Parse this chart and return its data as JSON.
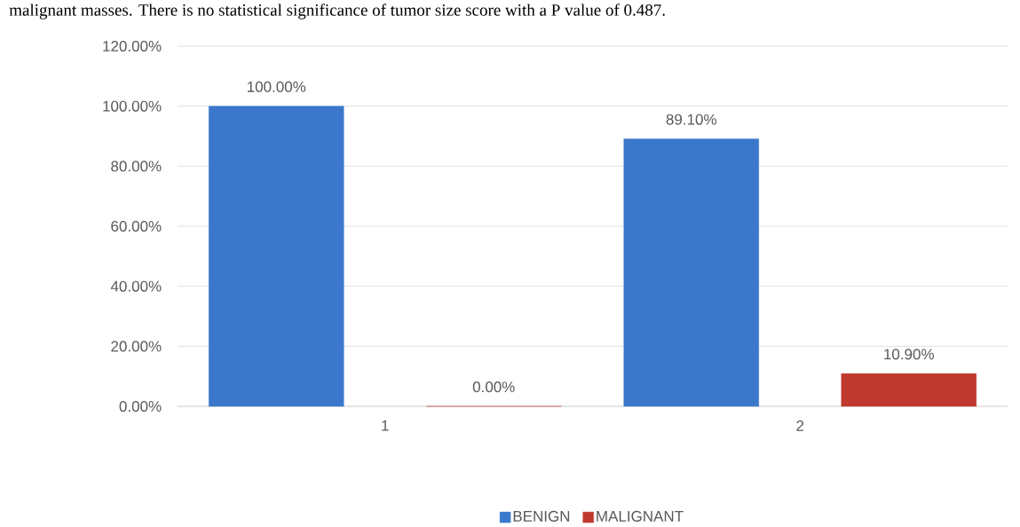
{
  "chart_data": {
    "type": "bar",
    "annotations": [
      "malignant masses. There is no statistical significance of tumor size score with a P value of 0.487."
    ],
    "categories": [
      "1",
      "2"
    ],
    "series": [
      {
        "name": "BENIGN",
        "color": "#3b78cc",
        "values": [
          100,
          89.1
        ],
        "value_labels": [
          "100.00%",
          "89.10%"
        ]
      },
      {
        "name": "MALIGNANT",
        "color": "#c0392f",
        "values": [
          0,
          10.9
        ],
        "value_labels": [
          "0.00%",
          "10.90%"
        ]
      }
    ],
    "ylim": [
      0,
      120
    ],
    "yticks": [
      {
        "value": 0,
        "label": "0.00%"
      },
      {
        "value": 20,
        "label": "20.00%"
      },
      {
        "value": 40,
        "label": "40.00%"
      },
      {
        "value": 60,
        "label": "60.00%"
      },
      {
        "value": 80,
        "label": "80.00%"
      },
      {
        "value": 100,
        "label": "100.00%"
      },
      {
        "value": 120,
        "label": "120.00%"
      }
    ],
    "grid": "y",
    "legend": "bottom"
  }
}
